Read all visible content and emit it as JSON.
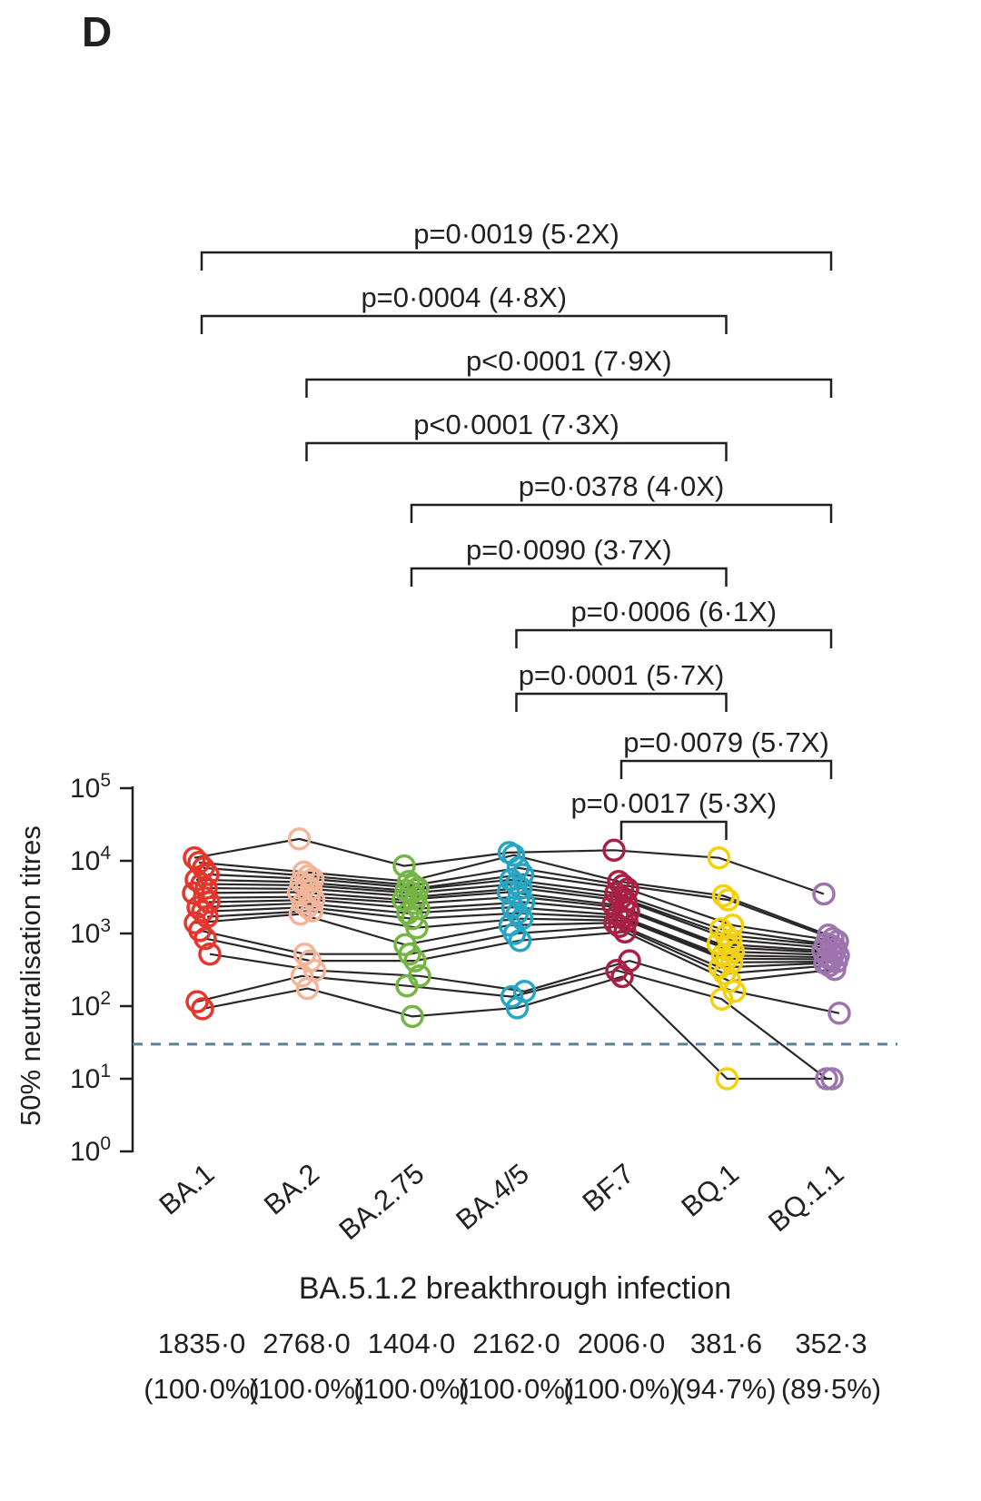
{
  "panel_label": "D",
  "axes": {
    "y_label": "50% neutralisation titres",
    "x_label": "BA.5.1.2 breakthrough infection",
    "y_tick_base": "10",
    "y_tick_exponents": [
      5,
      4,
      3,
      2,
      1,
      0
    ]
  },
  "chart_data": {
    "type": "line",
    "subtype": "paired-scatter-log",
    "categories": [
      "BA.1",
      "BA.2",
      "BA.2.75",
      "BA.4/5",
      "BF.7",
      "BQ.1",
      "BQ.1.1"
    ],
    "category_colors": [
      "#e6352b",
      "#f4b49a",
      "#74b544",
      "#26a5c4",
      "#ab1f45",
      "#f3d10c",
      "#9d74ae"
    ],
    "line_color": "#2b2728",
    "lod_line_color": "#5c7f93",
    "y_scale": "log10",
    "ylim": [
      1,
      100000
    ],
    "limit_of_detection": 30,
    "series": [
      {
        "name": "subject-01",
        "values": [
          11000,
          20000,
          8500,
          13000,
          14000,
          11000,
          3500
        ]
      },
      {
        "name": "subject-02",
        "values": [
          9500,
          7000,
          5200,
          12000,
          5200,
          3300,
          950
        ]
      },
      {
        "name": "subject-03",
        "values": [
          8000,
          6200,
          4600,
          8000,
          4600,
          2900,
          850
        ]
      },
      {
        "name": "subject-04",
        "values": [
          6500,
          5600,
          4200,
          6500,
          4100,
          1300,
          780
        ]
      },
      {
        "name": "subject-05",
        "values": [
          5500,
          5100,
          3900,
          5500,
          3600,
          1150,
          720
        ]
      },
      {
        "name": "subject-06",
        "values": [
          4800,
          4600,
          3600,
          4800,
          3100,
          950,
          680
        ]
      },
      {
        "name": "subject-07",
        "values": [
          4200,
          4100,
          3200,
          4200,
          2800,
          820,
          620
        ]
      },
      {
        "name": "subject-08",
        "values": [
          3600,
          3700,
          2900,
          3700,
          2500,
          720,
          580
        ]
      },
      {
        "name": "subject-09",
        "values": [
          3100,
          3200,
          2600,
          3200,
          2250,
          640,
          540
        ]
      },
      {
        "name": "subject-10",
        "values": [
          2700,
          2900,
          2200,
          2700,
          2000,
          560,
          500
        ]
      },
      {
        "name": "subject-11",
        "values": [
          2300,
          2600,
          1900,
          2300,
          1800,
          500,
          470
        ]
      },
      {
        "name": "subject-12",
        "values": [
          2000,
          2300,
          1600,
          1900,
          1650,
          450,
          440
        ]
      },
      {
        "name": "subject-13",
        "values": [
          1700,
          2050,
          1200,
          1600,
          1500,
          400,
          410
        ]
      },
      {
        "name": "subject-14",
        "values": [
          1400,
          1850,
          700,
          1300,
          1400,
          340,
          390
        ]
      },
      {
        "name": "subject-15",
        "values": [
          1100,
          520,
          520,
          1000,
          1250,
          280,
          360
        ]
      },
      {
        "name": "subject-16",
        "values": [
          850,
          420,
          420,
          800,
          1050,
          220,
          320
        ]
      },
      {
        "name": "subject-17",
        "values": [
          520,
          310,
          260,
          160,
          420,
          160,
          80
        ]
      },
      {
        "name": "subject-18",
        "values": [
          115,
          260,
          190,
          135,
          310,
          125,
          10
        ]
      },
      {
        "name": "subject-19",
        "values": [
          92,
          175,
          72,
          95,
          255,
          10,
          10
        ]
      }
    ],
    "comparisons": [
      {
        "label": "p=0·0019 (5·2X)",
        "from": 0,
        "to": 6
      },
      {
        "label": "p=0·0004 (4·8X)",
        "from": 0,
        "to": 5
      },
      {
        "label": "p<0·0001 (7·9X)",
        "from": 1,
        "to": 6
      },
      {
        "label": "p<0·0001 (7·3X)",
        "from": 1,
        "to": 5
      },
      {
        "label": "p=0·0378 (4·0X)",
        "from": 2,
        "to": 6
      },
      {
        "label": "p=0·0090 (3·7X)",
        "from": 2,
        "to": 5
      },
      {
        "label": "p=0·0006 (6·1X)",
        "from": 3,
        "to": 6
      },
      {
        "label": "p=0·0001 (5·7X)",
        "from": 3,
        "to": 5
      },
      {
        "label": "p=0·0079 (5·7X)",
        "from": 4,
        "to": 6
      },
      {
        "label": "p=0·0017 (5·3X)",
        "from": 4,
        "to": 5
      }
    ],
    "geometric_mean_titres": [
      "1835·0",
      "2768·0",
      "1404·0",
      "2162·0",
      "2006·0",
      "381·6",
      "352·3"
    ],
    "response_percentages": [
      "(100·0%)",
      "(100·0%)",
      "(100·0%)",
      "(100·0%)",
      "(100·0%)",
      "(94·7%)",
      "(89·5%)"
    ]
  }
}
